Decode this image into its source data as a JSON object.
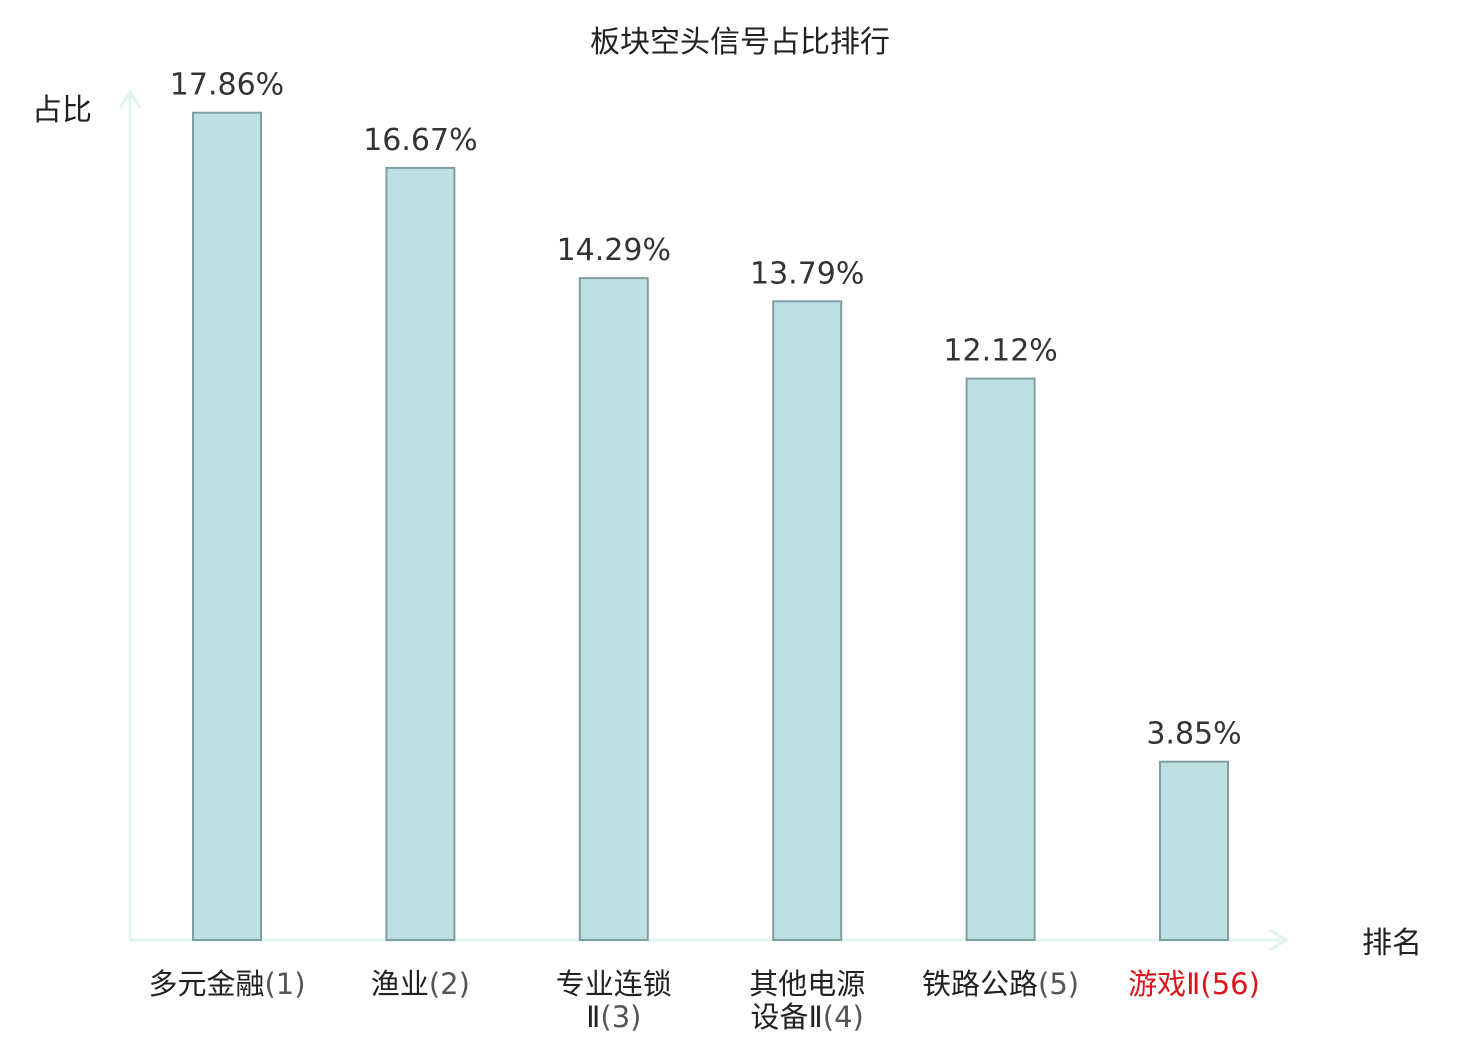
{
  "chart_data": {
    "type": "bar",
    "title": "板块空头信号占比排行",
    "ylabel": "占比",
    "xlabel": "排名",
    "ylim": [
      0,
      18.2
    ],
    "grid": false,
    "legend": "none",
    "categories": [
      {
        "name_lines": [
          "多元金融"
        ],
        "rank": "(1)",
        "highlight": false
      },
      {
        "name_lines": [
          "渔业"
        ],
        "rank": "(2)",
        "highlight": false
      },
      {
        "name_lines": [
          "专业连锁",
          "Ⅱ"
        ],
        "rank": "(3)",
        "highlight": false
      },
      {
        "name_lines": [
          "其他电源",
          "设备Ⅱ"
        ],
        "rank": "(4)",
        "highlight": false
      },
      {
        "name_lines": [
          "铁路公路"
        ],
        "rank": "(5)",
        "highlight": false
      },
      {
        "name_lines": [
          "游戏Ⅱ"
        ],
        "rank": "(56)",
        "highlight": true
      }
    ],
    "values": [
      17.86,
      16.67,
      14.29,
      13.79,
      12.12,
      3.85
    ],
    "value_labels": [
      "17.86%",
      "16.67%",
      "14.29%",
      "13.79%",
      "12.12%",
      "3.85%"
    ],
    "colors": {
      "bar_fill": "#bde0e3",
      "bar_stroke": "#7f9fa2",
      "axis": "#e2f3f1",
      "highlight_label": "#d9161c",
      "text": "#222222"
    }
  }
}
